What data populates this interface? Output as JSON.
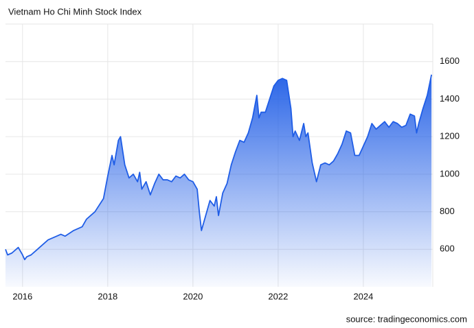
{
  "chart_data": {
    "type": "area",
    "title": "Vietnam Ho Chi Minh Stock Index",
    "source": "source: tradingeconomics.com",
    "color": "#1f5de6",
    "grid": true,
    "xlim": [
      2015.6,
      2025.63
    ],
    "ylim": [
      400,
      1800
    ],
    "xticks": [
      2016,
      2018,
      2020,
      2022,
      2024
    ],
    "yticks": [
      600,
      800,
      1000,
      1200,
      1400,
      1600
    ],
    "x": [
      2015.6,
      2015.65,
      2015.75,
      2015.9,
      2016.0,
      2016.05,
      2016.1,
      2016.2,
      2016.3,
      2016.5,
      2016.6,
      2016.8,
      2016.9,
      2017.0,
      2017.2,
      2017.4,
      2017.5,
      2017.7,
      2017.9,
      2018.0,
      2018.1,
      2018.15,
      2018.25,
      2018.3,
      2018.4,
      2018.5,
      2018.6,
      2018.7,
      2018.75,
      2018.8,
      2018.9,
      2019.0,
      2019.1,
      2019.2,
      2019.3,
      2019.4,
      2019.5,
      2019.6,
      2019.7,
      2019.8,
      2019.9,
      2020.0,
      2020.1,
      2020.15,
      2020.2,
      2020.3,
      2020.4,
      2020.5,
      2020.55,
      2020.6,
      2020.7,
      2020.8,
      2020.9,
      2021.0,
      2021.1,
      2021.2,
      2021.3,
      2021.4,
      2021.5,
      2021.55,
      2021.6,
      2021.7,
      2021.8,
      2021.9,
      2022.0,
      2022.1,
      2022.2,
      2022.3,
      2022.35,
      2022.4,
      2022.5,
      2022.6,
      2022.65,
      2022.7,
      2022.8,
      2022.9,
      2023.0,
      2023.1,
      2023.2,
      2023.3,
      2023.4,
      2023.5,
      2023.6,
      2023.7,
      2023.8,
      2023.9,
      2024.0,
      2024.1,
      2024.2,
      2024.3,
      2024.4,
      2024.5,
      2024.6,
      2024.7,
      2024.8,
      2024.9,
      2025.0,
      2025.1,
      2025.2,
      2025.25,
      2025.3,
      2025.4,
      2025.5,
      2025.6
    ],
    "values": [
      600,
      570,
      580,
      610,
      570,
      545,
      560,
      570,
      590,
      630,
      650,
      670,
      680,
      670,
      700,
      720,
      760,
      800,
      870,
      990,
      1100,
      1050,
      1180,
      1200,
      1050,
      980,
      1000,
      960,
      1010,
      920,
      960,
      890,
      950,
      1000,
      970,
      970,
      960,
      990,
      980,
      1000,
      970,
      960,
      920,
      800,
      700,
      780,
      860,
      830,
      880,
      780,
      900,
      950,
      1050,
      1120,
      1180,
      1170,
      1220,
      1300,
      1420,
      1300,
      1330,
      1330,
      1400,
      1470,
      1500,
      1510,
      1500,
      1350,
      1200,
      1230,
      1180,
      1270,
      1200,
      1220,
      1060,
      960,
      1050,
      1060,
      1050,
      1070,
      1110,
      1160,
      1230,
      1220,
      1100,
      1100,
      1150,
      1200,
      1270,
      1240,
      1260,
      1280,
      1250,
      1280,
      1270,
      1250,
      1260,
      1320,
      1310,
      1220,
      1270,
      1350,
      1420,
      1530
    ]
  }
}
